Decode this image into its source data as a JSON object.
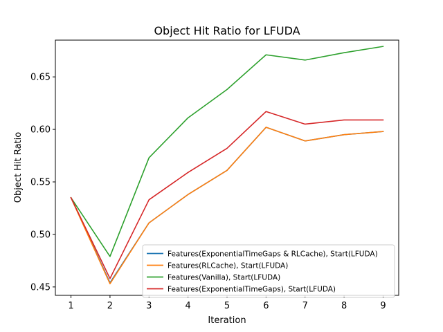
{
  "chart_data": {
    "type": "line",
    "title": "Object Hit Ratio for LFUDA",
    "xlabel": "Iteration",
    "ylabel": "Object Hit Ratio",
    "x": [
      1,
      2,
      3,
      4,
      5,
      6,
      7,
      8,
      9
    ],
    "xlim": [
      0.6,
      9.4
    ],
    "ylim": [
      0.442,
      0.685
    ],
    "xticks": [
      1,
      2,
      3,
      4,
      5,
      6,
      7,
      8,
      9
    ],
    "yticks": [
      0.45,
      0.5,
      0.55,
      0.6,
      0.65
    ],
    "ytick_labels": [
      "0.45",
      "0.50",
      "0.55",
      "0.60",
      "0.65"
    ],
    "grid": false,
    "legend_position": "lower-right",
    "series": [
      {
        "name": "Features(ExponentialTimeGaps & RLCache), Start(LFUDA)",
        "color": "#1f77b4",
        "values": [
          0.535,
          0.454,
          0.511,
          0.538,
          0.561,
          0.602,
          0.589,
          0.595,
          0.598
        ]
      },
      {
        "name": "Features(RLCache), Start(LFUDA)",
        "color": "#ff7f0e",
        "values": [
          0.535,
          0.453,
          0.511,
          0.538,
          0.561,
          0.602,
          0.589,
          0.595,
          0.598
        ]
      },
      {
        "name": "Features(Vanilla), Start(LFUDA)",
        "color": "#2ca02c",
        "values": [
          0.535,
          0.479,
          0.573,
          0.611,
          0.638,
          0.671,
          0.666,
          0.673,
          0.679
        ]
      },
      {
        "name": "Features(ExponentialTimeGaps), Start(LFUDA)",
        "color": "#d62728",
        "values": [
          0.535,
          0.458,
          0.533,
          0.559,
          0.582,
          0.617,
          0.605,
          0.609,
          0.609
        ]
      }
    ]
  }
}
